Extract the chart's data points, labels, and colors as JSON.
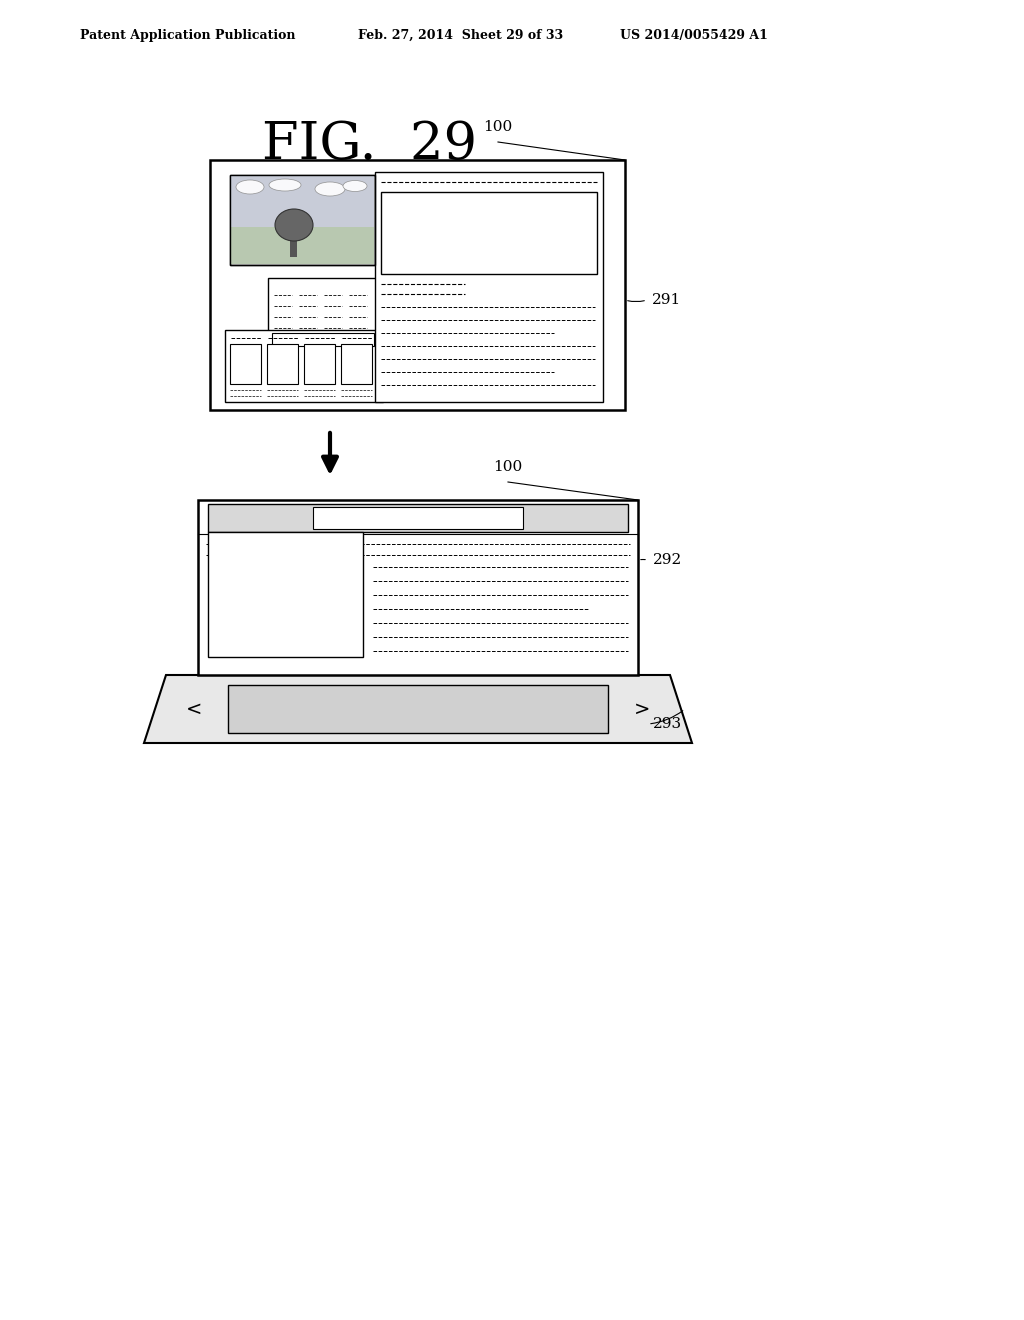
{
  "bg_color": "#ffffff",
  "header_left": "Patent Application Publication",
  "header_mid": "Feb. 27, 2014  Sheet 29 of 33",
  "header_right": "US 2014/0055429 A1",
  "fig_title": "FIG.  29",
  "label_100_top": "100",
  "label_291": "291",
  "label_100_bot": "100",
  "label_292": "292",
  "label_293": "293"
}
